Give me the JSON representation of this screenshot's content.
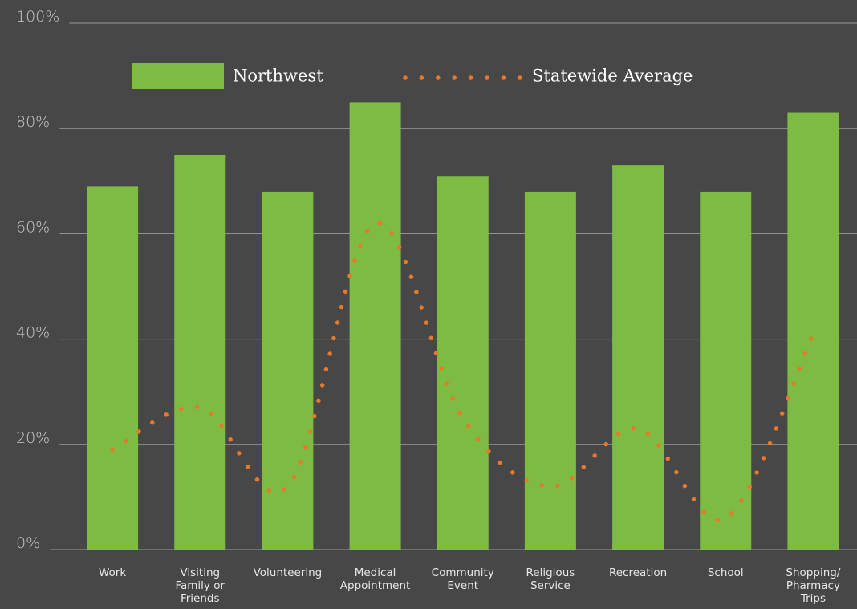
{
  "chart_data": {
    "type": "bar_line",
    "categories": [
      "Work",
      "Visiting Family or Friends",
      "Volunteering",
      "Medical Appointment",
      "Community Event",
      "Religious Service",
      "Recreation",
      "School",
      "Shopping/ Pharmacy Trips"
    ],
    "series": [
      {
        "name": "Northwest",
        "color": "#7dbb42",
        "type": "bar",
        "values": [
          69,
          75,
          68,
          85,
          71,
          68,
          73,
          68,
          83
        ]
      },
      {
        "name": "Statewide Average",
        "color": "#e8782a",
        "type": "line",
        "style": "dotted",
        "values": [
          19,
          27,
          12,
          62,
          25,
          12,
          23,
          6,
          41
        ]
      }
    ],
    "ylim": [
      0,
      100
    ],
    "yticks": [
      {
        "value": 0,
        "label": "0%"
      },
      {
        "value": 20,
        "label": "20%"
      },
      {
        "value": 40,
        "label": "40%"
      },
      {
        "value": 60,
        "label": "60%"
      },
      {
        "value": 80,
        "label": "80%"
      },
      {
        "value": 100,
        "label": "100%"
      }
    ],
    "grid": true,
    "legend": "top"
  }
}
